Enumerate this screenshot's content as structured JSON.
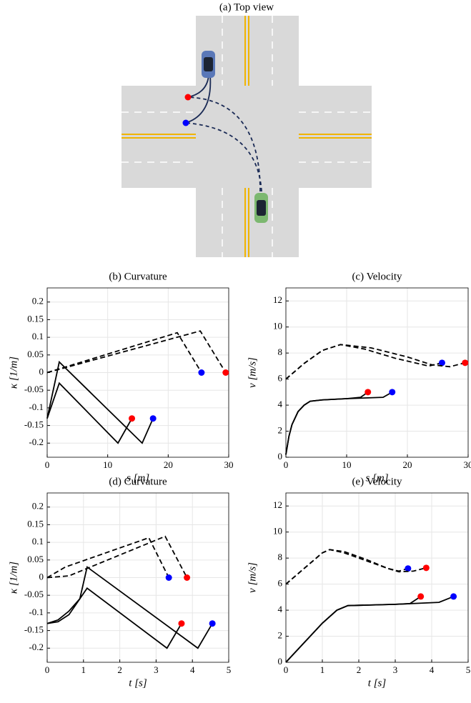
{
  "top_view": {
    "title": "(a) Top view"
  },
  "chart_data": [
    {
      "type": "line",
      "title": "(b) Curvature",
      "xlabel": "s [m]",
      "ylabel": "κ [1/m]",
      "xlim": [
        0,
        30
      ],
      "xticks": [
        0,
        10,
        20,
        30
      ],
      "ylim": [
        -0.24,
        0.24
      ],
      "yticks": [
        -0.2,
        -0.15,
        -0.1,
        -0.05,
        0,
        0.05,
        0.1,
        0.15,
        0.2
      ],
      "grid": true,
      "series": [
        {
          "color": "#000000",
          "dashed": true,
          "end_marker_color": "#0000ff",
          "x": [
            0,
            21.5,
            25.5
          ],
          "values": [
            0,
            0.113,
            0
          ]
        },
        {
          "color": "#000000",
          "dashed": true,
          "end_marker_color": "#ff0000",
          "x": [
            0,
            25.3,
            29.5
          ],
          "values": [
            0,
            0.118,
            0
          ]
        },
        {
          "color": "#000000",
          "dashed": false,
          "end_marker_color": "#0000ff",
          "x": [
            0,
            2,
            15.7,
            17.5
          ],
          "values": [
            -0.13,
            0.03,
            -0.2,
            -0.13
          ]
        },
        {
          "color": "#000000",
          "dashed": false,
          "end_marker_color": "#ff0000",
          "x": [
            0,
            2,
            11.7,
            14
          ],
          "values": [
            -0.13,
            -0.03,
            -0.2,
            -0.13
          ]
        }
      ]
    },
    {
      "type": "line",
      "title": "(c) Velocity",
      "xlabel": "s [m]",
      "ylabel": "v [m/s]",
      "xlim": [
        0,
        30
      ],
      "xticks": [
        0,
        10,
        20,
        30
      ],
      "ylim": [
        0,
        13
      ],
      "yticks": [
        0,
        2,
        4,
        6,
        8,
        10,
        12
      ],
      "grid": true,
      "series": [
        {
          "color": "#000000",
          "dashed": true,
          "end_marker_color": "#0000ff",
          "x": [
            0,
            3,
            6,
            9,
            13,
            18,
            23.5,
            25.7
          ],
          "values": [
            6,
            7.2,
            8.2,
            8.65,
            8.3,
            7.6,
            7.0,
            7.25
          ]
        },
        {
          "color": "#000000",
          "dashed": true,
          "end_marker_color": "#ff0000",
          "x": [
            0,
            3,
            6,
            9,
            14,
            20,
            24,
            27,
            29.5
          ],
          "values": [
            6,
            7.2,
            8.2,
            8.65,
            8.4,
            7.7,
            7.1,
            6.95,
            7.25
          ]
        },
        {
          "color": "#000000",
          "dashed": false,
          "end_marker_color": "#0000ff",
          "x": [
            0,
            0.5,
            1,
            2,
            3,
            4,
            6,
            10,
            16,
            17.5
          ],
          "values": [
            0.2,
            1.6,
            2.5,
            3.5,
            4.0,
            4.3,
            4.4,
            4.5,
            4.6,
            5
          ]
        },
        {
          "color": "#000000",
          "dashed": false,
          "end_marker_color": "#ff0000",
          "x": [
            0,
            0.5,
            1,
            2,
            3,
            4,
            6,
            10,
            12.3,
            13.5
          ],
          "values": [
            0.2,
            1.6,
            2.5,
            3.5,
            4.0,
            4.3,
            4.4,
            4.5,
            4.6,
            5
          ]
        }
      ]
    },
    {
      "type": "line",
      "title": "(d) Curvature",
      "xlabel": "t [s]",
      "ylabel": "κ [1/m]",
      "xlim": [
        0,
        5
      ],
      "xticks": [
        0,
        1,
        2,
        3,
        4,
        5
      ],
      "ylim": [
        -0.24,
        0.24
      ],
      "yticks": [
        -0.2,
        -0.15,
        -0.1,
        -0.05,
        0,
        0.05,
        0.1,
        0.15,
        0.2
      ],
      "grid": true,
      "series": [
        {
          "color": "#000000",
          "dashed": true,
          "end_marker_color": "#0000ff",
          "x": [
            0,
            0.5,
            2.8,
            3.35
          ],
          "values": [
            0,
            0.03,
            0.113,
            0
          ]
        },
        {
          "color": "#000000",
          "dashed": true,
          "end_marker_color": "#ff0000",
          "x": [
            0,
            0.6,
            3.25,
            3.85
          ],
          "values": [
            0,
            0.005,
            0.117,
            0
          ]
        },
        {
          "color": "#000000",
          "dashed": false,
          "end_marker_color": "#0000ff",
          "x": [
            0,
            0.3,
            0.6,
            0.9,
            1.1,
            4.15,
            4.55
          ],
          "values": [
            -0.13,
            -0.125,
            -0.105,
            -0.06,
            0.03,
            -0.2,
            -0.13
          ]
        },
        {
          "color": "#000000",
          "dashed": false,
          "end_marker_color": "#ff0000",
          "x": [
            0,
            0.3,
            0.6,
            0.9,
            1.1,
            3.3,
            3.7
          ],
          "values": [
            -0.13,
            -0.12,
            -0.095,
            -0.06,
            -0.03,
            -0.2,
            -0.13
          ]
        }
      ]
    },
    {
      "type": "line",
      "title": "(e) Velocity",
      "xlabel": "t [s]",
      "ylabel": "v [m/s]",
      "xlim": [
        0,
        5
      ],
      "xticks": [
        0,
        1,
        2,
        3,
        4,
        5
      ],
      "ylim": [
        0,
        13
      ],
      "yticks": [
        0,
        2,
        4,
        6,
        8,
        10,
        12
      ],
      "grid": true,
      "series": [
        {
          "color": "#000000",
          "dashed": true,
          "end_marker_color": "#0000ff",
          "x": [
            0,
            0.5,
            1,
            1.2,
            1.6,
            2.2,
            2.8,
            3.1,
            3.35
          ],
          "values": [
            6,
            7.2,
            8.4,
            8.65,
            8.4,
            7.8,
            7.2,
            7.0,
            7.2
          ]
        },
        {
          "color": "#000000",
          "dashed": true,
          "end_marker_color": "#ff0000",
          "x": [
            0,
            0.5,
            1,
            1.2,
            1.6,
            2.2,
            2.8,
            3.1,
            3.5,
            3.85
          ],
          "values": [
            6,
            7.2,
            8.4,
            8.65,
            8.5,
            7.9,
            7.2,
            6.95,
            7.0,
            7.25
          ]
        },
        {
          "color": "#000000",
          "dashed": false,
          "end_marker_color": "#0000ff",
          "x": [
            0,
            0.5,
            1,
            1.4,
            1.7,
            3,
            4.2,
            4.6
          ],
          "values": [
            0,
            1.5,
            3,
            4,
            4.35,
            4.45,
            4.6,
            5.05
          ]
        },
        {
          "color": "#000000",
          "dashed": false,
          "end_marker_color": "#ff0000",
          "x": [
            0,
            0.5,
            1,
            1.4,
            1.7,
            3,
            3.4,
            3.7
          ],
          "values": [
            0,
            1.5,
            3,
            4,
            4.35,
            4.45,
            4.5,
            5.05
          ]
        }
      ]
    }
  ]
}
